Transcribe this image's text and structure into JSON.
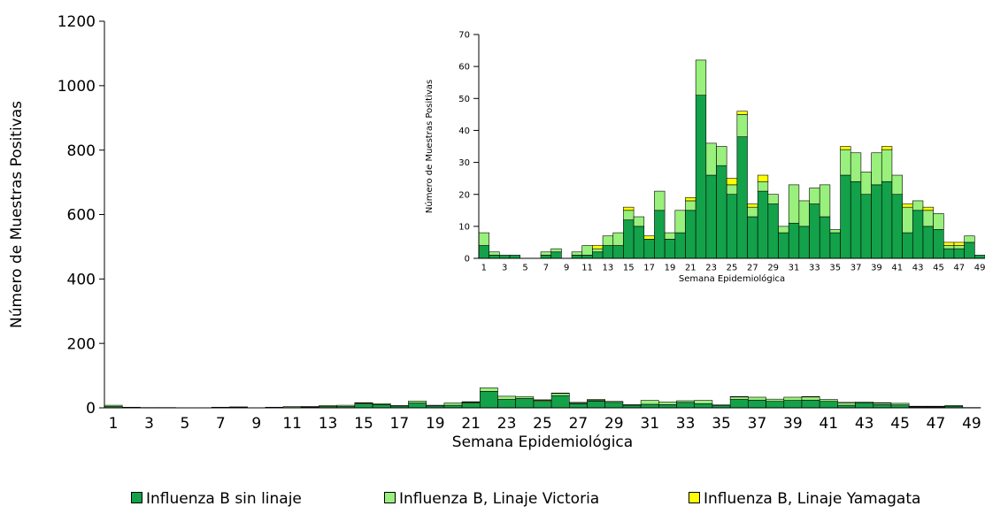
{
  "chart_data": [
    {
      "type": "bar",
      "stacked": true,
      "xlabel": "Semana Epidemiológica",
      "ylabel": "Número de Muestras Positivas",
      "ylim": [
        0,
        1200
      ],
      "yticks": [
        0,
        200,
        400,
        600,
        800,
        1000,
        1200
      ],
      "x": [
        1,
        2,
        3,
        4,
        5,
        6,
        7,
        8,
        9,
        10,
        11,
        12,
        13,
        14,
        15,
        16,
        17,
        18,
        19,
        20,
        21,
        22,
        23,
        24,
        25,
        26,
        27,
        28,
        29,
        30,
        31,
        32,
        33,
        34,
        35,
        36,
        37,
        38,
        39,
        40,
        41,
        42,
        43,
        44,
        45,
        46,
        47,
        48,
        49
      ],
      "xtick_labels": [
        "1",
        "3",
        "5",
        "7",
        "9",
        "11",
        "13",
        "15",
        "17",
        "19",
        "21",
        "23",
        "25",
        "27",
        "29",
        "31",
        "33",
        "35",
        "37",
        "39",
        "41",
        "43",
        "45",
        "47",
        "49"
      ],
      "series": [
        {
          "name": "Influenza B sin linaje",
          "color": "#13a14a",
          "values": [
            4,
            1,
            1,
            1,
            0,
            0,
            1,
            2,
            0,
            1,
            1,
            2,
            4,
            4,
            12,
            10,
            6,
            15,
            6,
            8,
            15,
            51,
            26,
            29,
            20,
            38,
            13,
            21,
            17,
            8,
            11,
            10,
            17,
            13,
            8,
            26,
            24,
            20,
            23,
            24,
            20,
            8,
            15,
            10,
            9,
            3,
            3,
            5,
            1
          ]
        },
        {
          "name": "Influenza B, Linaje Victoria",
          "color": "#99f07c",
          "values": [
            4,
            1,
            0,
            0,
            0,
            0,
            1,
            1,
            0,
            1,
            3,
            1,
            3,
            4,
            3,
            3,
            0,
            6,
            2,
            7,
            3,
            11,
            10,
            6,
            3,
            7,
            3,
            3,
            3,
            2,
            12,
            8,
            5,
            10,
            1,
            8,
            9,
            7,
            10,
            10,
            6,
            8,
            3,
            5,
            5,
            1,
            1,
            2,
            0
          ]
        },
        {
          "name": "Influenza B, Linaje Yamagata",
          "color": "#ffff00",
          "values": [
            0,
            0,
            0,
            0,
            0,
            0,
            0,
            0,
            0,
            0,
            0,
            1,
            0,
            0,
            1,
            0,
            1,
            0,
            0,
            0,
            1,
            0,
            0,
            0,
            2,
            1,
            1,
            2,
            0,
            0,
            0,
            0,
            0,
            0,
            0,
            1,
            0,
            0,
            0,
            1,
            0,
            1,
            0,
            1,
            0,
            1,
            1,
            0,
            0
          ]
        }
      ],
      "legend_position": "bottom"
    },
    {
      "type": "bar",
      "stacked": true,
      "inset": true,
      "xlabel": "Semana Epidemiológica",
      "ylabel": "Número de Muestras Positivas",
      "ylim": [
        0,
        70
      ],
      "yticks": [
        0,
        10,
        20,
        30,
        40,
        50,
        60,
        70
      ],
      "xtick_labels": [
        "1",
        "3",
        "5",
        "7",
        "9",
        "11",
        "13",
        "15",
        "17",
        "19",
        "21",
        "23",
        "25",
        "27",
        "29",
        "31",
        "33",
        "35",
        "37",
        "39",
        "41",
        "43",
        "45",
        "47",
        "49"
      ],
      "same_data_as": "main"
    }
  ],
  "legend": [
    {
      "label": "Influenza B sin linaje",
      "color": "#13a14a"
    },
    {
      "label": "Influenza B, Linaje Victoria",
      "color": "#99f07c"
    },
    {
      "label": "Influenza B, Linaje Yamagata",
      "color": "#ffff00"
    }
  ]
}
